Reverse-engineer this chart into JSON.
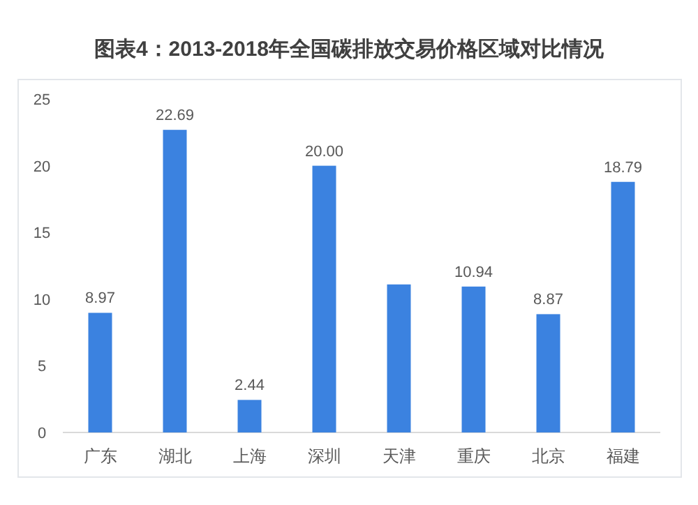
{
  "chart_data": {
    "type": "bar",
    "title": "图表4：2013-2018年全国碳排放交易价格区域对比情况",
    "categories": [
      "广东",
      "湖北",
      "上海",
      "深圳",
      "天津",
      "重庆",
      "北京",
      "福建"
    ],
    "values": [
      8.97,
      22.69,
      2.44,
      20.0,
      11.1,
      10.94,
      8.87,
      18.79
    ],
    "value_labels": [
      "8.97",
      "22.69",
      "2.44",
      "20.00",
      null,
      "10.94",
      "8.87",
      "18.79"
    ],
    "color": "#3b82e0",
    "ylim": [
      0,
      25
    ],
    "yticks": [
      0,
      5,
      10,
      15,
      20,
      25
    ],
    "grid": false
  }
}
